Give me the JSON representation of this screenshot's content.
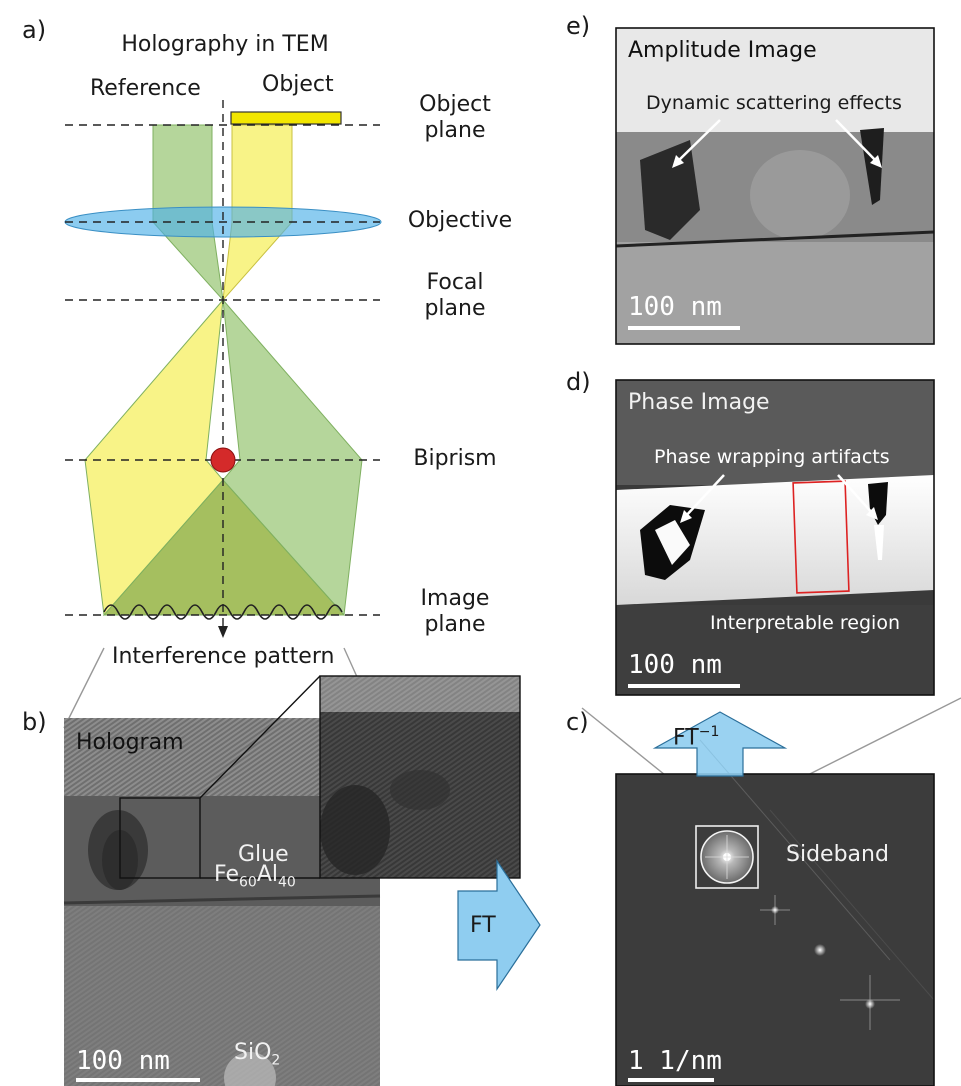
{
  "panels": {
    "a": {
      "letter": "a)",
      "title": "Holography in TEM",
      "reference_label": "Reference",
      "object_label": "Object",
      "planes": [
        {
          "key": "object",
          "line1": "Object",
          "line2": "plane"
        },
        {
          "key": "objective",
          "line1": "Objective",
          "line2": ""
        },
        {
          "key": "focal",
          "line1": "Focal",
          "line2": "plane"
        },
        {
          "key": "biprism",
          "line1": "Biprism",
          "line2": ""
        },
        {
          "key": "image",
          "line1": "Image",
          "line2": "plane"
        }
      ],
      "interference_label": "Interference pattern"
    },
    "b": {
      "letter": "b)",
      "title": "Hologram",
      "glue_label": "Glue",
      "alloy_label": {
        "base1": "Fe",
        "sub1": "60",
        "base2": "Al",
        "sub2": "40"
      },
      "substrate_label": {
        "base": "SiO",
        "sub": "2"
      },
      "scalebar": "100 nm"
    },
    "c": {
      "letter": "c)",
      "sideband_label": "Sideband",
      "scalebar": "1 1/nm"
    },
    "d": {
      "letter": "d)",
      "title": "Phase Image",
      "annotation": "Phase wrapping artifacts",
      "region_label": "Interpretable region",
      "scalebar": "100 nm"
    },
    "e": {
      "letter": "e)",
      "title": "Amplitude Image",
      "annotation": "Dynamic scattering effects",
      "scalebar": "100 nm"
    }
  },
  "arrows": {
    "ft": "FT",
    "ift": {
      "base": "FT",
      "sup": "−1"
    }
  },
  "colors": {
    "yellow_beam": "#f7f27a",
    "green_beam": "#a8cf8a",
    "lens": "#4fb0e8",
    "biprism": "#d42a2a",
    "arrow_fill": "#8fcdf0",
    "object_bar": "#f2e600"
  }
}
